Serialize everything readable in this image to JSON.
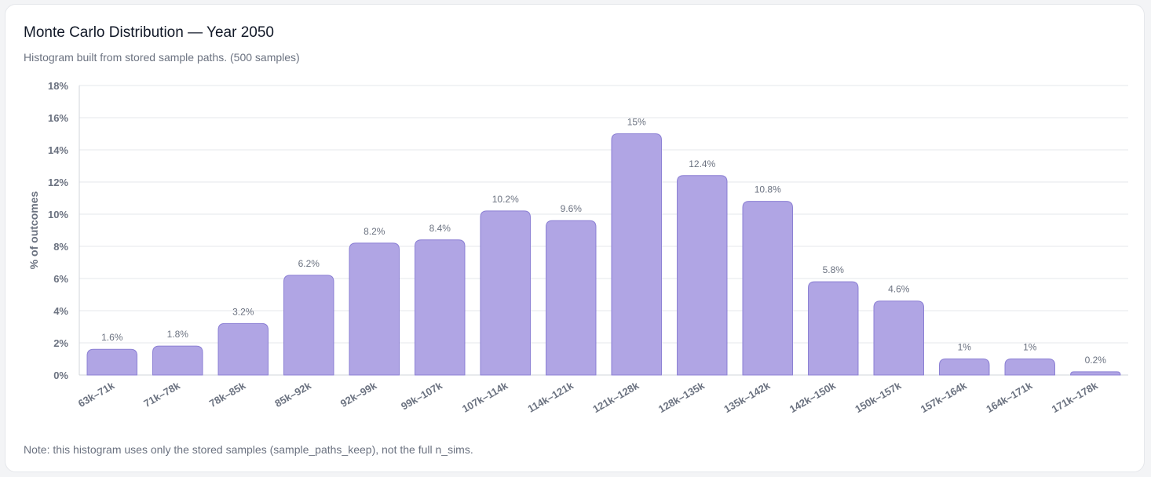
{
  "card": {
    "title": "Monte Carlo Distribution — Year 2050",
    "subtitle": "Histogram built from stored sample paths. (500 samples)",
    "note": "Note: this histogram uses only the stored samples (sample_paths_keep), not the full n_sims."
  },
  "colors": {
    "bar_fill": "#b0a5e4",
    "bar_stroke": "#8b7fd4",
    "grid": "#e5e7eb",
    "axis": "#d1d5db"
  },
  "chart_data": {
    "type": "bar",
    "title": "Monte Carlo Distribution — Year 2050",
    "xlabel": "",
    "ylabel": "% of outcomes",
    "ylim": [
      0,
      18
    ],
    "yticks": [
      0,
      2,
      4,
      6,
      8,
      10,
      12,
      14,
      16,
      18
    ],
    "ytick_suffix": "%",
    "grid": true,
    "legend": "none",
    "categories": [
      "63k–71k",
      "71k–78k",
      "78k–85k",
      "85k–92k",
      "92k–99k",
      "99k–107k",
      "107k–114k",
      "114k–121k",
      "121k–128k",
      "128k–135k",
      "135k–142k",
      "142k–150k",
      "150k–157k",
      "157k–164k",
      "164k–171k",
      "171k–178k"
    ],
    "values": [
      1.6,
      1.8,
      3.2,
      6.2,
      8.2,
      8.4,
      10.2,
      9.6,
      15,
      12.4,
      10.8,
      5.8,
      4.6,
      1,
      1,
      0.2
    ],
    "data_labels": [
      "1.6%",
      "1.8%",
      "3.2%",
      "6.2%",
      "8.2%",
      "8.4%",
      "10.2%",
      "9.6%",
      "15%",
      "12.4%",
      "10.8%",
      "5.8%",
      "4.6%",
      "1%",
      "1%",
      "0.2%"
    ]
  }
}
